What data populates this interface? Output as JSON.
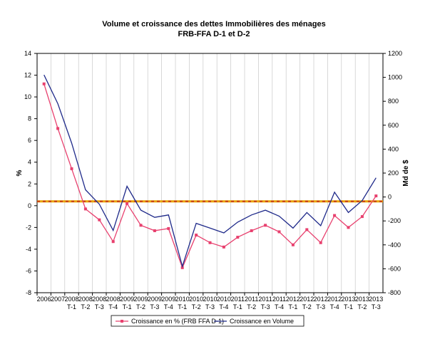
{
  "chart_data": {
    "type": "line",
    "title": "Volume et croissance des dettes Immobilières des ménages",
    "subtitle": "FRB-FFA D-1 et D-2",
    "ylabel": "%",
    "y2label": "Md de $",
    "ylim": [
      -8,
      14
    ],
    "yticks": [
      -8,
      -6,
      -4,
      -2,
      0,
      2,
      4,
      6,
      8,
      10,
      12,
      14
    ],
    "y2lim": [
      -800,
      1200
    ],
    "y2ticks": [
      -800,
      -600,
      -400,
      -200,
      0,
      200,
      400,
      600,
      800,
      1000,
      1200
    ],
    "categories": [
      {
        "year": "2006",
        "q": ""
      },
      {
        "year": "2007",
        "q": ""
      },
      {
        "year": "2008",
        "q": "T-1"
      },
      {
        "year": "2008",
        "q": "T-2"
      },
      {
        "year": "2008",
        "q": "T-3"
      },
      {
        "year": "2008",
        "q": "T-4"
      },
      {
        "year": "2009",
        "q": "T-1"
      },
      {
        "year": "2009",
        "q": "T-2"
      },
      {
        "year": "2009",
        "q": "T-3"
      },
      {
        "year": "2009",
        "q": "T-4"
      },
      {
        "year": "2010",
        "q": "T-1"
      },
      {
        "year": "2010",
        "q": "T-2"
      },
      {
        "year": "2010",
        "q": "T-3"
      },
      {
        "year": "2010",
        "q": "T-4"
      },
      {
        "year": "2011",
        "q": "T-1"
      },
      {
        "year": "2011",
        "q": "T-2"
      },
      {
        "year": "2011",
        "q": "T-3"
      },
      {
        "year": "2011",
        "q": "T-4"
      },
      {
        "year": "2012",
        "q": "T-1"
      },
      {
        "year": "2012",
        "q": "T-2"
      },
      {
        "year": "2012",
        "q": "T-3"
      },
      {
        "year": "2012",
        "q": "T-4"
      },
      {
        "year": "2013",
        "q": "T-1"
      },
      {
        "year": "2013",
        "q": "T-2"
      },
      {
        "year": "2013",
        "q": "T-3"
      }
    ],
    "series": [
      {
        "name": "Croissance en %  (FRB FFA D-1)",
        "axis": "left",
        "color": "#e8406e",
        "marker": "square",
        "values": [
          11.2,
          7.1,
          3.4,
          -0.3,
          -1.3,
          -3.3,
          0.2,
          -1.8,
          -2.3,
          -2.1,
          -5.7,
          -2.7,
          -3.4,
          -3.8,
          -2.9,
          -2.3,
          -1.8,
          -2.4,
          -3.6,
          -2.2,
          -3.4,
          -0.9,
          -2.0,
          -1.0,
          0.9
        ]
      },
      {
        "name": "Croissance en Volume",
        "axis": "right",
        "color": "#1f2a8a",
        "marker": "none",
        "values": [
          1020,
          780,
          450,
          60,
          -60,
          -280,
          90,
          -110,
          -170,
          -150,
          -580,
          -220,
          -260,
          -300,
          -210,
          -150,
          -110,
          -160,
          -260,
          -130,
          -240,
          40,
          -130,
          -30,
          160
        ]
      }
    ],
    "reference_line": {
      "y": 0.4,
      "color": "#e8a400",
      "accent": "#c83a1a"
    },
    "legend_position": "bottom",
    "grid": "vertical"
  }
}
